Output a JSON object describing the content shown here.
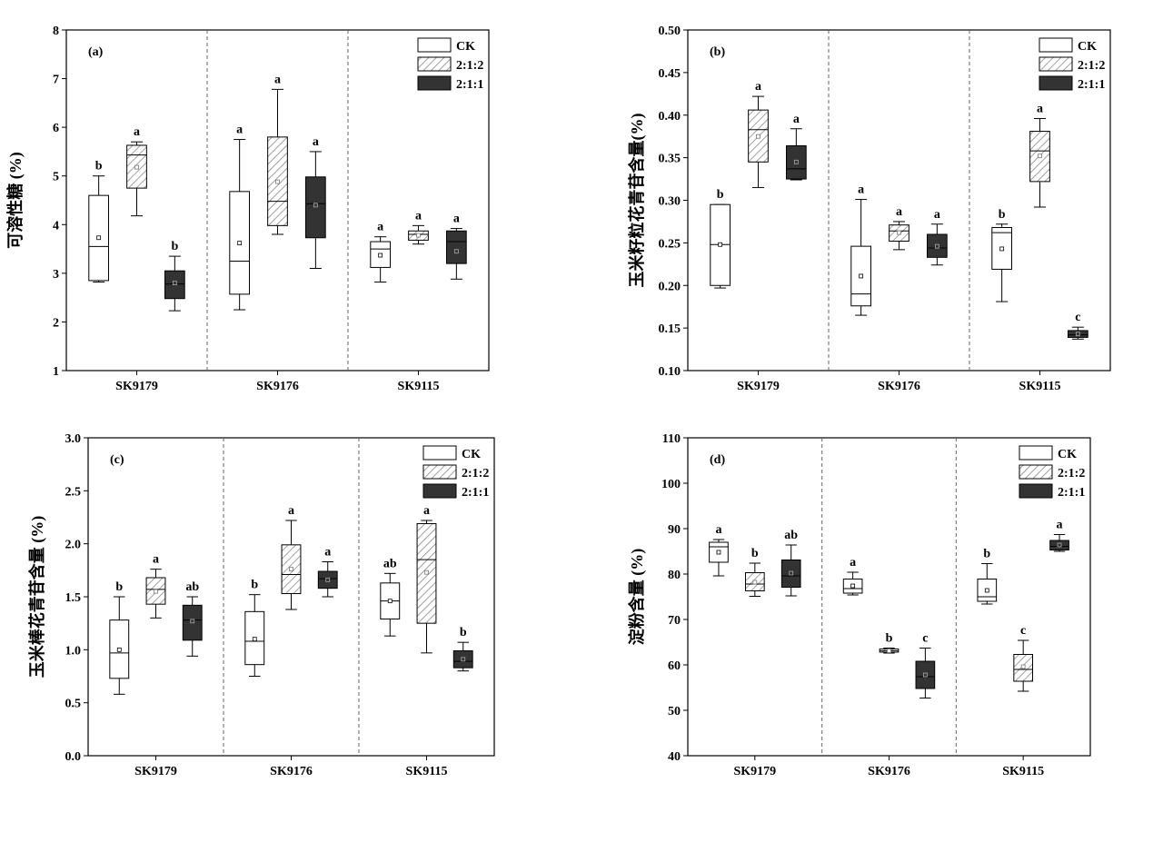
{
  "legend": {
    "entries": [
      {
        "label": "CK",
        "style": "white"
      },
      {
        "label": "2:1:2",
        "style": "hatch"
      },
      {
        "label": "2:1:1",
        "style": "dark"
      }
    ]
  },
  "colors": {
    "dark_box": "#333333",
    "hatch_line": "#888888",
    "axis": "#000000",
    "divider": "#666666"
  },
  "chart_data": [
    {
      "type": "box",
      "panel": "(a)",
      "ylabel": "可溶性糖 (%)",
      "ylim": [
        1,
        8
      ],
      "yticks": [
        "1",
        "2",
        "3",
        "4",
        "5",
        "6",
        "7",
        "8"
      ],
      "categories": [
        "SK9179",
        "SK9176",
        "SK9115"
      ],
      "series": [
        {
          "name": "CK",
          "boxes": [
            {
              "min": 2.82,
              "q1": 2.85,
              "median": 3.55,
              "q3": 4.6,
              "max": 5.0,
              "mean": 3.73,
              "sig": "b"
            },
            {
              "min": 2.25,
              "q1": 2.57,
              "median": 3.25,
              "q3": 4.68,
              "max": 5.75,
              "mean": 3.62,
              "sig": "a"
            },
            {
              "min": 2.82,
              "q1": 3.12,
              "median": 3.5,
              "q3": 3.65,
              "max": 3.75,
              "mean": 3.37,
              "sig": "a"
            }
          ]
        },
        {
          "name": "2:1:2",
          "boxes": [
            {
              "min": 4.18,
              "q1": 4.75,
              "median": 5.43,
              "q3": 5.63,
              "max": 5.7,
              "mean": 5.18,
              "sig": "a"
            },
            {
              "min": 3.8,
              "q1": 3.98,
              "median": 4.48,
              "q3": 5.8,
              "max": 6.78,
              "mean": 4.88,
              "sig": "a"
            },
            {
              "min": 3.6,
              "q1": 3.68,
              "median": 3.8,
              "q3": 3.87,
              "max": 3.98,
              "mean": 3.78,
              "sig": "a"
            }
          ]
        },
        {
          "name": "2:1:1",
          "boxes": [
            {
              "min": 2.23,
              "q1": 2.48,
              "median": 2.78,
              "q3": 3.05,
              "max": 3.35,
              "mean": 2.8,
              "sig": "b"
            },
            {
              "min": 3.1,
              "q1": 3.73,
              "median": 4.43,
              "q3": 4.98,
              "max": 5.5,
              "mean": 4.4,
              "sig": "a"
            },
            {
              "min": 2.88,
              "q1": 3.2,
              "median": 3.65,
              "q3": 3.87,
              "max": 3.92,
              "mean": 3.45,
              "sig": "a"
            }
          ]
        }
      ]
    },
    {
      "type": "box",
      "panel": "(b)",
      "ylabel": "玉米籽粒花青苷含量(%)",
      "ylim": [
        0.1,
        0.5
      ],
      "yticks": [
        "0.10",
        "0.15",
        "0.20",
        "0.25",
        "0.30",
        "0.35",
        "0.40",
        "0.45",
        "0.50"
      ],
      "categories": [
        "SK9179",
        "SK9176",
        "SK9115"
      ],
      "series": [
        {
          "name": "CK",
          "boxes": [
            {
              "min": 0.197,
              "q1": 0.2,
              "median": 0.248,
              "q3": 0.295,
              "max": 0.295,
              "mean": 0.248,
              "sig": "b"
            },
            {
              "min": 0.165,
              "q1": 0.176,
              "median": 0.19,
              "q3": 0.246,
              "max": 0.301,
              "mean": 0.211,
              "sig": "a"
            },
            {
              "min": 0.181,
              "q1": 0.219,
              "median": 0.262,
              "q3": 0.268,
              "max": 0.272,
              "mean": 0.243,
              "sig": "b"
            }
          ]
        },
        {
          "name": "2:1:2",
          "boxes": [
            {
              "min": 0.315,
              "q1": 0.345,
              "median": 0.383,
              "q3": 0.406,
              "max": 0.422,
              "mean": 0.375,
              "sig": "a"
            },
            {
              "min": 0.242,
              "q1": 0.252,
              "median": 0.264,
              "q3": 0.271,
              "max": 0.275,
              "mean": 0.262,
              "sig": "a"
            },
            {
              "min": 0.292,
              "q1": 0.322,
              "median": 0.358,
              "q3": 0.381,
              "max": 0.396,
              "mean": 0.352,
              "sig": "a"
            }
          ]
        },
        {
          "name": "2:1:1",
          "boxes": [
            {
              "min": 0.324,
              "q1": 0.325,
              "median": 0.337,
              "q3": 0.364,
              "max": 0.384,
              "mean": 0.345,
              "sig": "a"
            },
            {
              "min": 0.224,
              "q1": 0.233,
              "median": 0.244,
              "q3": 0.26,
              "max": 0.272,
              "mean": 0.246,
              "sig": "a"
            },
            {
              "min": 0.137,
              "q1": 0.139,
              "median": 0.142,
              "q3": 0.147,
              "max": 0.151,
              "mean": 0.143,
              "sig": "c"
            }
          ]
        }
      ]
    },
    {
      "type": "box",
      "panel": "(c)",
      "ylabel": "玉米棒花青苷含量 (%)",
      "ylim": [
        0.0,
        3.0
      ],
      "yticks": [
        "0.0",
        "0.5",
        "1.0",
        "1.5",
        "2.0",
        "2.5",
        "3.0"
      ],
      "categories": [
        "SK9179",
        "SK9176",
        "SK9115"
      ],
      "series": [
        {
          "name": "CK",
          "boxes": [
            {
              "min": 0.58,
              "q1": 0.73,
              "median": 0.97,
              "q3": 1.28,
              "max": 1.5,
              "mean": 1.0,
              "sig": "b"
            },
            {
              "min": 0.75,
              "q1": 0.86,
              "median": 1.08,
              "q3": 1.36,
              "max": 1.52,
              "mean": 1.1,
              "sig": "b"
            },
            {
              "min": 1.13,
              "q1": 1.29,
              "median": 1.46,
              "q3": 1.63,
              "max": 1.72,
              "mean": 1.46,
              "sig": "ab"
            }
          ]
        },
        {
          "name": "2:1:2",
          "boxes": [
            {
              "min": 1.3,
              "q1": 1.43,
              "median": 1.57,
              "q3": 1.68,
              "max": 1.76,
              "mean": 1.55,
              "sig": "a"
            },
            {
              "min": 1.38,
              "q1": 1.53,
              "median": 1.71,
              "q3": 1.99,
              "max": 2.22,
              "mean": 1.76,
              "sig": "a"
            },
            {
              "min": 0.97,
              "q1": 1.25,
              "median": 1.85,
              "q3": 2.19,
              "max": 2.22,
              "mean": 1.73,
              "sig": "a"
            }
          ]
        },
        {
          "name": "2:1:1",
          "boxes": [
            {
              "min": 0.94,
              "q1": 1.09,
              "median": 1.28,
              "q3": 1.42,
              "max": 1.5,
              "mean": 1.27,
              "sig": "ab"
            },
            {
              "min": 1.5,
              "q1": 1.58,
              "median": 1.67,
              "q3": 1.74,
              "max": 1.83,
              "mean": 1.66,
              "sig": "a"
            },
            {
              "min": 0.8,
              "q1": 0.83,
              "median": 0.89,
              "q3": 0.99,
              "max": 1.07,
              "mean": 0.91,
              "sig": "b"
            }
          ]
        }
      ]
    },
    {
      "type": "box",
      "panel": "(d)",
      "ylabel": "淀粉含量 (%)",
      "ylim": [
        40,
        110
      ],
      "yticks": [
        "40",
        "50",
        "60",
        "70",
        "80",
        "90",
        "100",
        "110"
      ],
      "categories": [
        "SK9179",
        "SK9176",
        "SK9115"
      ],
      "series": [
        {
          "name": "CK",
          "boxes": [
            {
              "min": 79.6,
              "q1": 82.6,
              "median": 86.0,
              "q3": 87.0,
              "max": 87.6,
              "mean": 84.8,
              "sig": "a"
            },
            {
              "min": 75.4,
              "q1": 75.8,
              "median": 76.8,
              "q3": 78.9,
              "max": 80.4,
              "mean": 77.4,
              "sig": "a"
            },
            {
              "min": 73.4,
              "q1": 74.0,
              "median": 75.0,
              "q3": 78.9,
              "max": 82.3,
              "mean": 76.4,
              "sig": "b"
            }
          ]
        },
        {
          "name": "2:1:2",
          "boxes": [
            {
              "min": 75.1,
              "q1": 76.3,
              "median": 77.8,
              "q3": 80.3,
              "max": 82.4,
              "mean": 78.2,
              "sig": "b"
            },
            {
              "min": 62.6,
              "q1": 62.8,
              "median": 63.1,
              "q3": 63.5,
              "max": 63.7,
              "mean": 63.1,
              "sig": "b"
            },
            {
              "min": 54.2,
              "q1": 56.4,
              "median": 59.0,
              "q3": 62.3,
              "max": 65.4,
              "mean": 59.6,
              "sig": "c"
            }
          ]
        },
        {
          "name": "2:1:1",
          "boxes": [
            {
              "min": 75.2,
              "q1": 77.1,
              "median": 79.6,
              "q3": 83.1,
              "max": 86.4,
              "mean": 80.2,
              "sig": "ab"
            },
            {
              "min": 52.7,
              "q1": 54.8,
              "median": 57.4,
              "q3": 60.8,
              "max": 63.7,
              "mean": 57.8,
              "sig": "c"
            },
            {
              "min": 85.0,
              "q1": 85.3,
              "median": 86.1,
              "q3": 87.4,
              "max": 88.7,
              "mean": 86.4,
              "sig": "a"
            }
          ]
        }
      ]
    }
  ]
}
